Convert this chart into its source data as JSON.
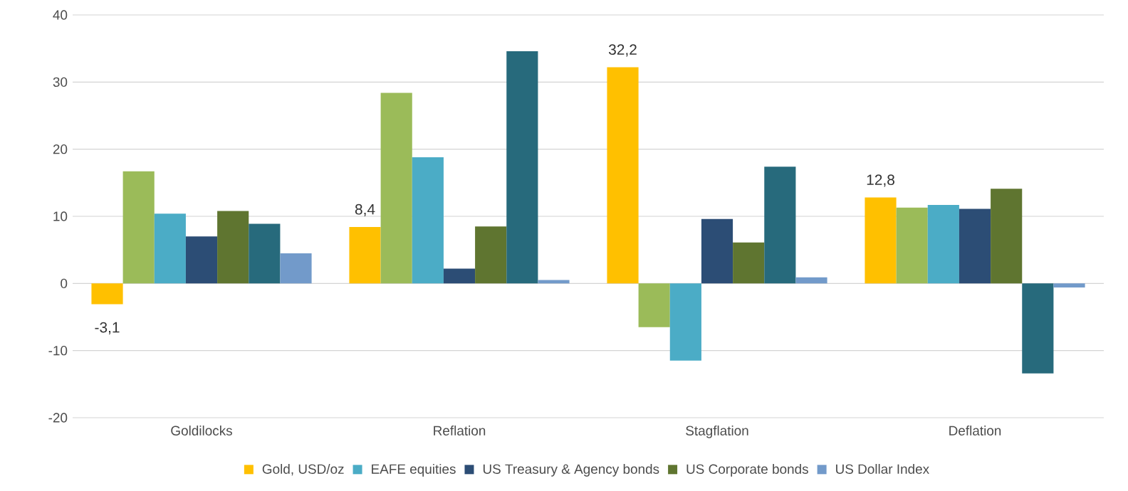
{
  "chart_data": {
    "type": "bar",
    "categories": [
      "Goldilocks",
      "Reflation",
      "Stagflation",
      "Deflation"
    ],
    "series": [
      {
        "name": "Gold, USD/oz",
        "color": "#ffc000",
        "values": [
          -3.1,
          8.4,
          32.2,
          12.8
        ],
        "value_labels": [
          "-3,1",
          "8,4",
          "32,2",
          "12,8"
        ]
      },
      {
        "color": "#9bbb59",
        "values": [
          16.7,
          28.4,
          -6.5,
          11.3
        ]
      },
      {
        "name": "EAFE equities",
        "color": "#4bacc6",
        "values": [
          10.4,
          18.8,
          -11.5,
          11.7
        ]
      },
      {
        "name": "US Treasury & Agency bonds",
        "color": "#2c4d75",
        "values": [
          7.0,
          2.2,
          9.6,
          11.1
        ]
      },
      {
        "name": "US Corporate bonds",
        "color": "#5f7530",
        "values": [
          10.8,
          8.5,
          6.1,
          14.1
        ]
      },
      {
        "color": "#276a7c",
        "values": [
          8.9,
          34.6,
          17.4,
          -13.4
        ]
      },
      {
        "name": "US Dollar Index",
        "color": "#729aca",
        "values": [
          4.5,
          0.5,
          0.9,
          -0.6
        ]
      }
    ],
    "ylim": [
      -20,
      40
    ],
    "yticks": [
      -20,
      -10,
      0,
      10,
      20,
      30,
      40
    ],
    "grid": "y",
    "legend": "bottom"
  }
}
